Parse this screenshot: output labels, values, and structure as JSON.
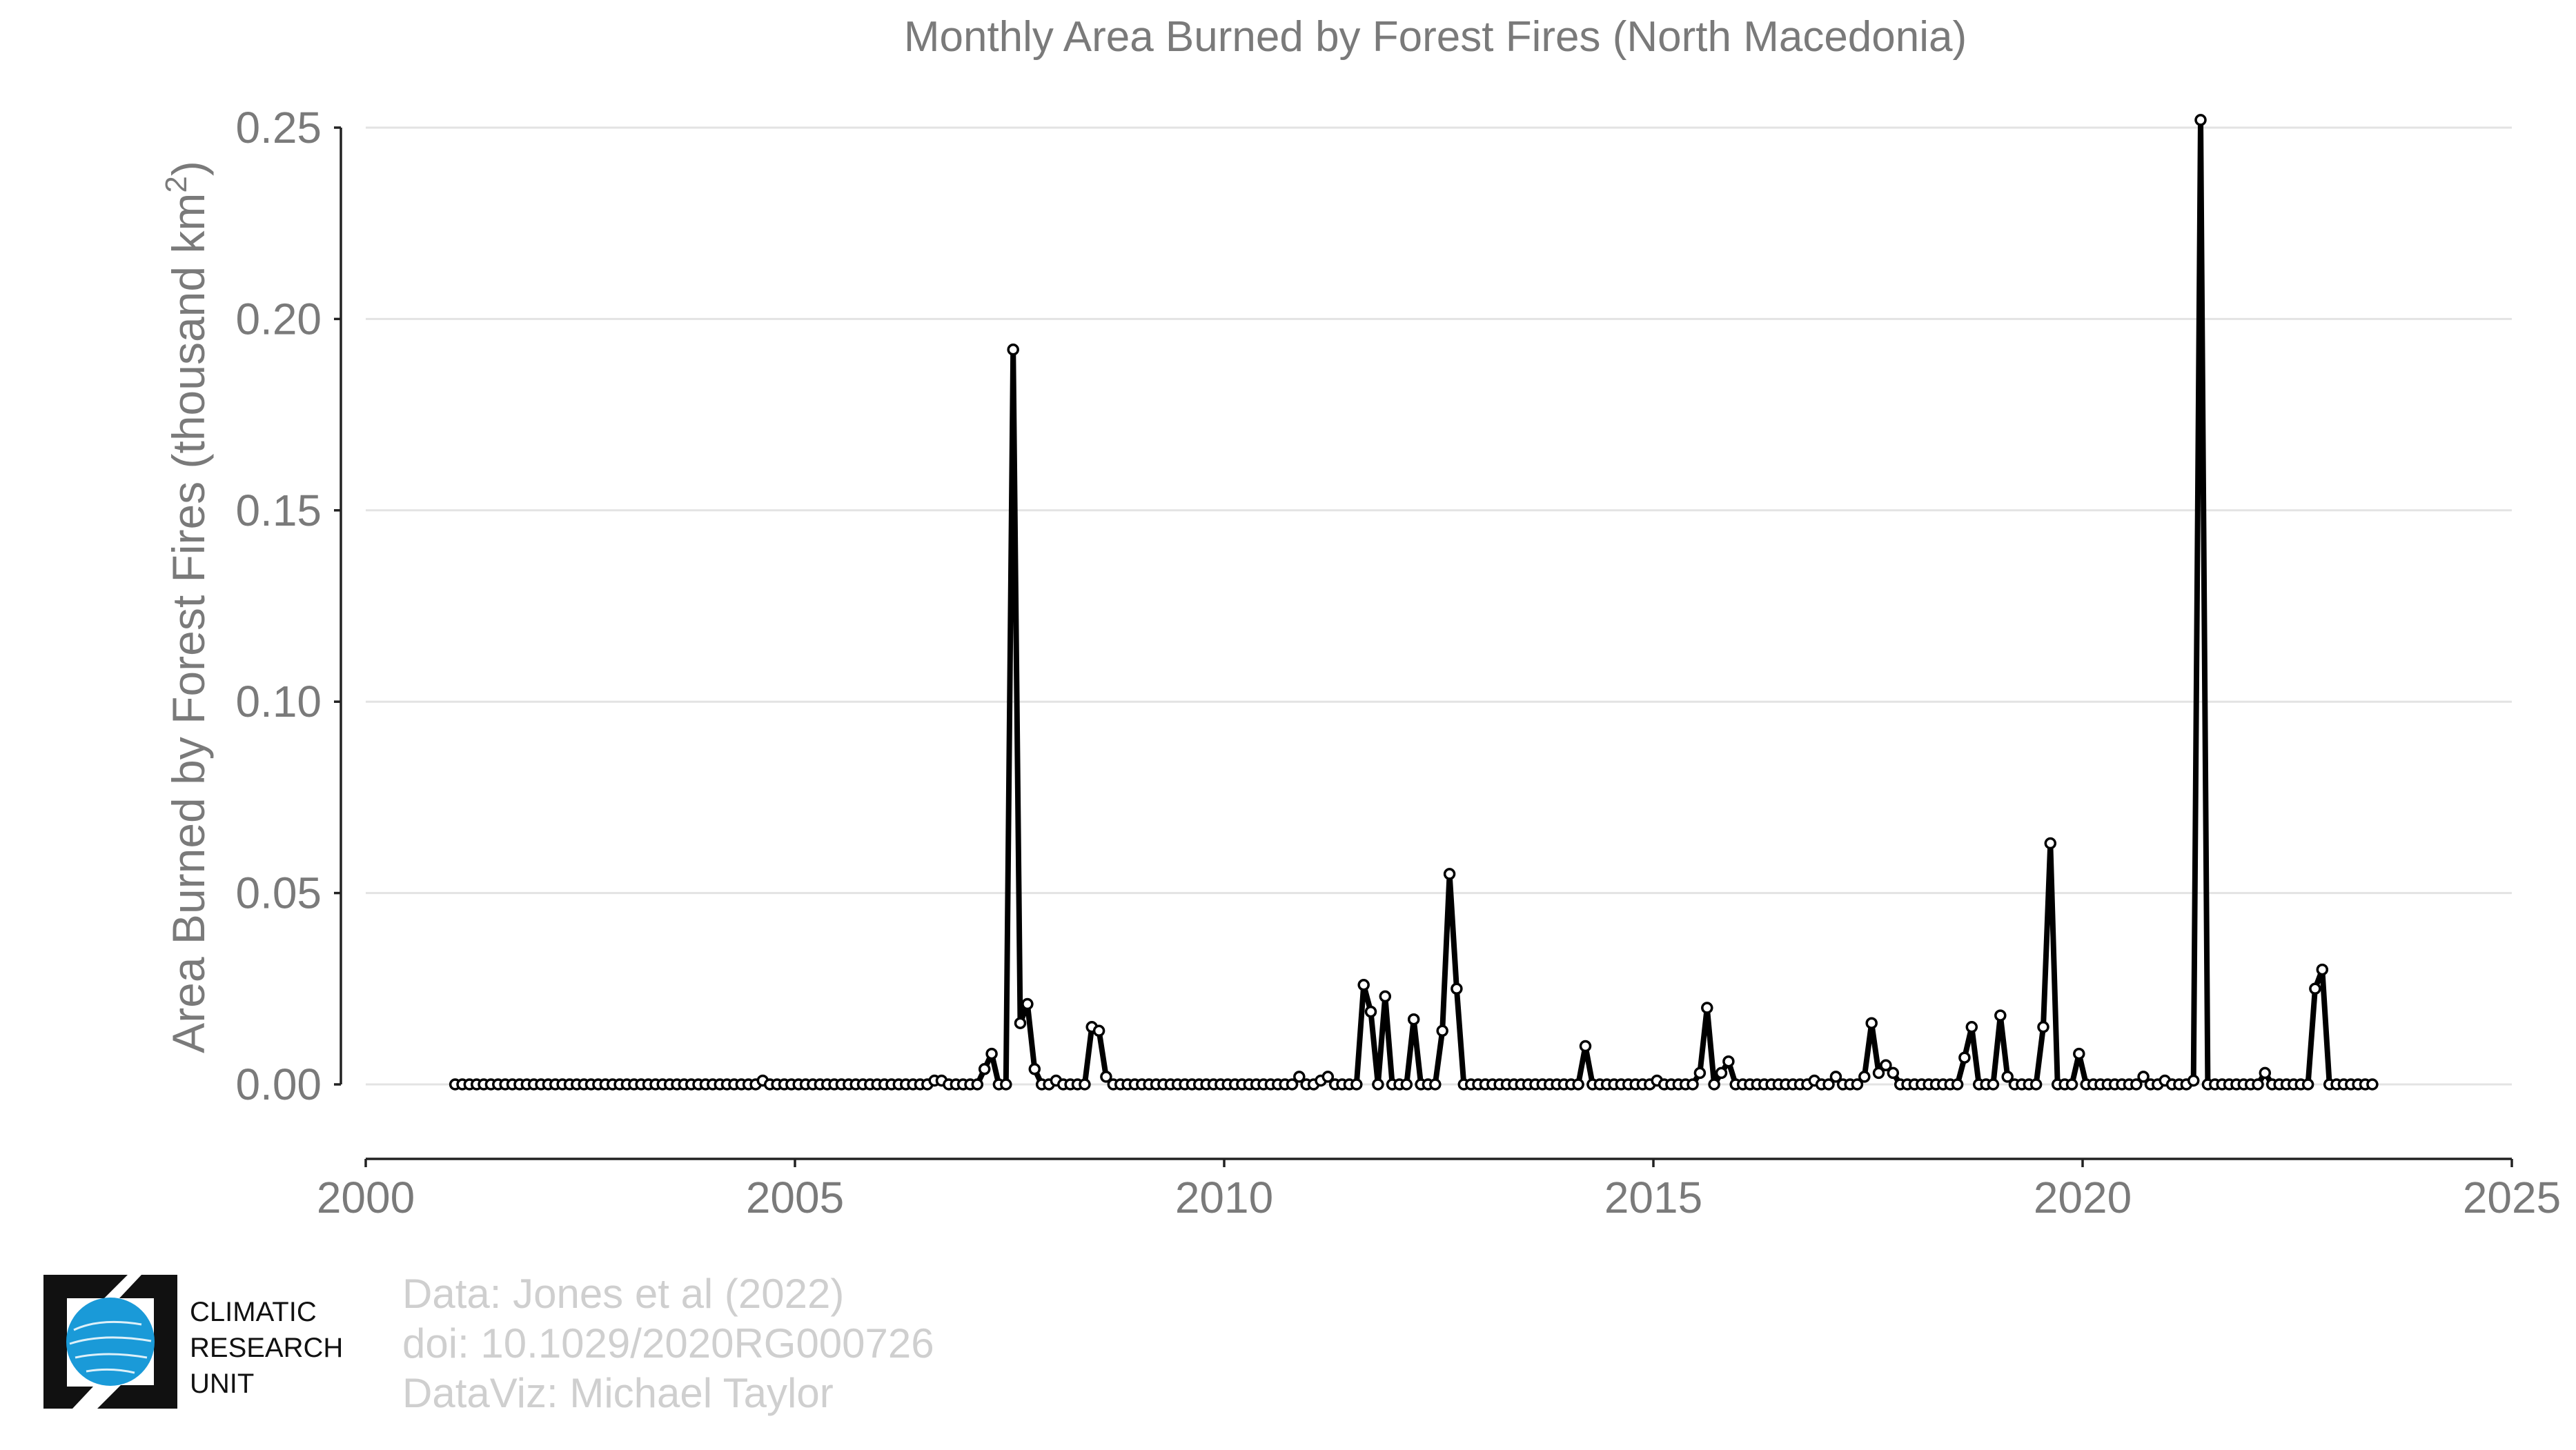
{
  "chart_data": {
    "type": "line",
    "title": "Monthly Area Burned by Forest Fires (North Macedonia)",
    "ylabel": "Area Burned by Forest Fires (thousand km²)",
    "xlabel": "",
    "xlim": [
      2000,
      2025
    ],
    "ylim": [
      0,
      0.25
    ],
    "x_ticks": [
      "2000",
      "2005",
      "2010",
      "2015",
      "2020",
      "2025"
    ],
    "y_ticks": [
      "0.00",
      "0.05",
      "0.10",
      "0.15",
      "0.20",
      "0.25"
    ],
    "grid": "horizontal",
    "line_color": "#000000",
    "marker": "open-circle",
    "start": "2001-01",
    "end": "2023-05",
    "values": [
      0,
      0,
      0,
      0,
      0,
      0,
      0,
      0,
      0,
      0,
      0,
      0,
      0,
      0,
      0,
      0,
      0,
      0,
      0,
      0,
      0,
      0,
      0,
      0,
      0,
      0,
      0,
      0,
      0,
      0,
      0,
      0,
      0,
      0,
      0,
      0,
      0,
      0,
      0,
      0,
      0,
      0,
      0,
      0.001,
      0,
      0,
      0,
      0,
      0,
      0,
      0,
      0,
      0,
      0,
      0,
      0,
      0,
      0,
      0,
      0,
      0,
      0,
      0,
      0,
      0,
      0,
      0,
      0.001,
      0.001,
      0,
      0,
      0,
      0,
      0,
      0.004,
      0.008,
      0,
      0,
      0.192,
      0.016,
      0.021,
      0.004,
      0,
      0,
      0.001,
      0,
      0,
      0,
      0,
      0.015,
      0.014,
      0.002,
      0,
      0,
      0,
      0,
      0,
      0,
      0,
      0,
      0,
      0,
      0,
      0,
      0,
      0,
      0,
      0,
      0,
      0,
      0,
      0,
      0,
      0,
      0,
      0,
      0,
      0,
      0.002,
      0,
      0,
      0.001,
      0.002,
      0,
      0,
      0,
      0,
      0.026,
      0.019,
      0,
      0.023,
      0,
      0,
      0,
      0.017,
      0,
      0,
      0,
      0.014,
      0.055,
      0.025,
      0,
      0,
      0,
      0,
      0,
      0,
      0,
      0,
      0,
      0,
      0,
      0,
      0,
      0,
      0,
      0,
      0,
      0.01,
      0,
      0,
      0,
      0,
      0,
      0,
      0,
      0,
      0,
      0.001,
      0,
      0,
      0,
      0,
      0,
      0.003,
      0.02,
      0,
      0.003,
      0.006,
      0,
      0,
      0,
      0,
      0,
      0,
      0,
      0,
      0,
      0,
      0,
      0.001,
      0,
      0,
      0.002,
      0,
      0,
      0,
      0.002,
      0.016,
      0.003,
      0.005,
      0.003,
      0,
      0,
      0,
      0,
      0,
      0,
      0,
      0,
      0,
      0.007,
      0.015,
      0,
      0,
      0,
      0.018,
      0.002,
      0,
      0,
      0,
      0,
      0.015,
      0.063,
      0,
      0,
      0,
      0.008,
      0,
      0,
      0,
      0,
      0,
      0,
      0,
      0,
      0.002,
      0,
      0,
      0.001,
      0,
      0,
      0,
      0.001,
      0.252,
      0,
      0,
      0,
      0,
      0,
      0,
      0,
      0,
      0.003,
      0,
      0,
      0,
      0,
      0,
      0,
      0.025,
      0.03,
      0,
      0,
      0,
      0,
      0,
      0,
      0
    ]
  },
  "credits": {
    "line1": "Data: Jones et al (2022)",
    "line2": "doi: 10.1029/2020RG000726",
    "line3": "DataViz: Michael Taylor"
  },
  "logo": {
    "line1": "CLIMATIC",
    "line2": "RESEARCH",
    "line3": "UNIT",
    "globe_color": "#1a9ad8"
  }
}
